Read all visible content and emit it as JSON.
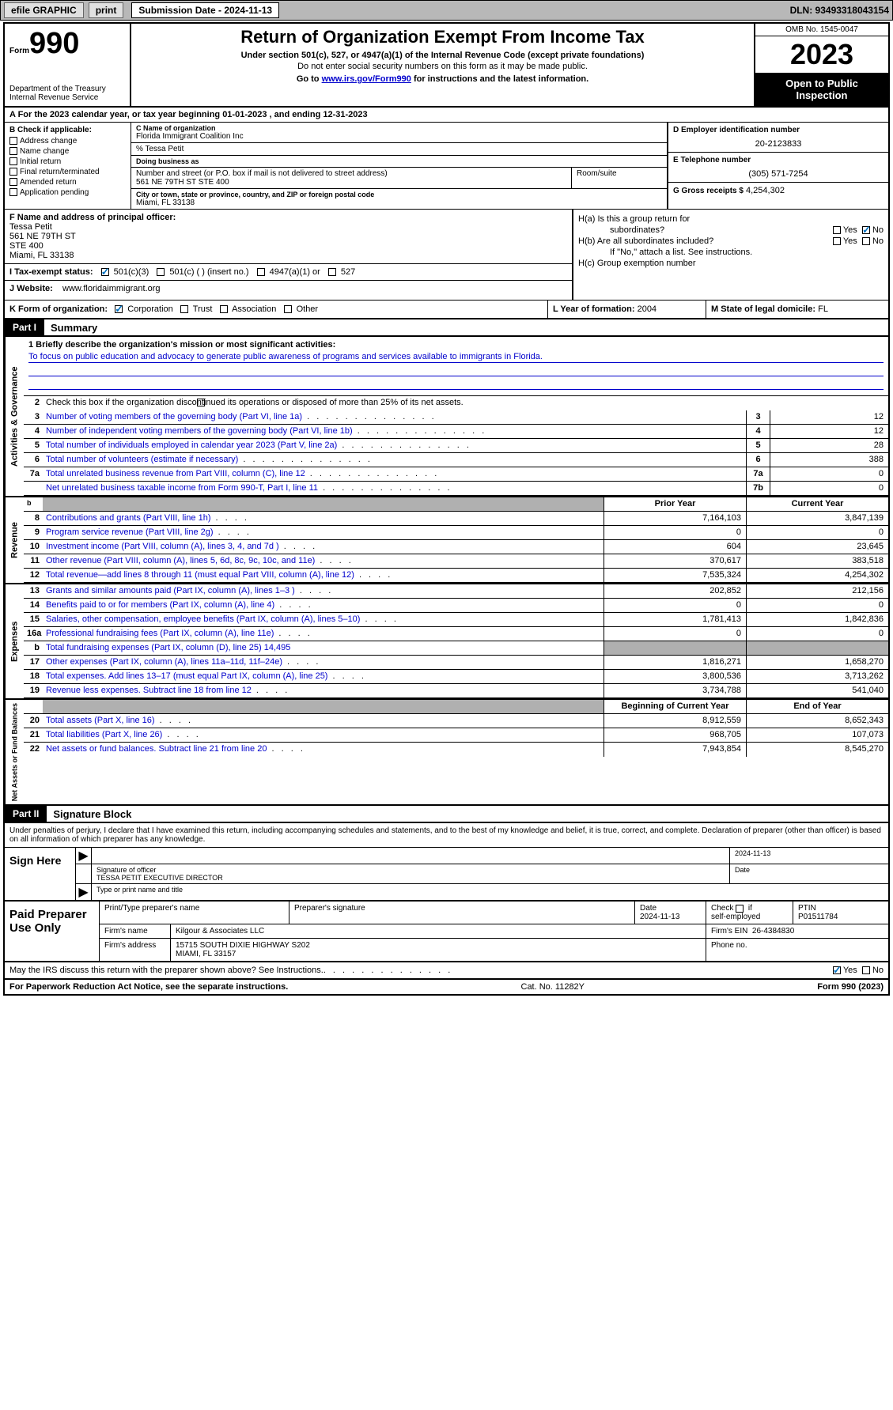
{
  "topbar": {
    "efile": "efile GRAPHIC",
    "print": "print",
    "submission": "Submission Date - 2024-11-13",
    "dln": "DLN: 93493318043154"
  },
  "header": {
    "form_word": "Form",
    "form_num": "990",
    "title": "Return of Organization Exempt From Income Tax",
    "sub1": "Under section 501(c), 527, or 4947(a)(1) of the Internal Revenue Code (except private foundations)",
    "sub2": "Do not enter social security numbers on this form as it may be made public.",
    "sub3_pre": "Go to ",
    "sub3_link": "www.irs.gov/Form990",
    "sub3_post": " for instructions and the latest information.",
    "dept1": "Department of the Treasury",
    "dept2": "Internal Revenue Service",
    "omb": "OMB No. 1545-0047",
    "year": "2023",
    "open": "Open to Public Inspection"
  },
  "rowA": "A For the 2023 calendar year, or tax year beginning 01-01-2023    , and ending 12-31-2023",
  "secB": {
    "lbl": "B Check if applicable:",
    "opts": [
      "Address change",
      "Name change",
      "Initial return",
      "Final return/terminated",
      "Amended return",
      "Application pending"
    ]
  },
  "secC": {
    "name_lbl": "C Name of organization",
    "name": "Florida Immigrant Coalition Inc",
    "care": "% Tessa Petit",
    "dba_lbl": "Doing business as",
    "dba": "",
    "addr_lbl": "Number and street (or P.O. box if mail is not delivered to street address)",
    "addr": "561 NE 79TH ST STE 400",
    "room_lbl": "Room/suite",
    "city_lbl": "City or town, state or province, country, and ZIP or foreign postal code",
    "city": "Miami, FL  33138"
  },
  "secD": {
    "lbl": "D Employer identification number",
    "val": "20-2123833"
  },
  "secE": {
    "lbl": "E Telephone number",
    "val": "(305) 571-7254"
  },
  "secG": {
    "lbl": "G Gross receipts $",
    "val": "4,254,302"
  },
  "secF": {
    "lbl": "F  Name and address of principal officer:",
    "l1": "Tessa Petit",
    "l2": "561 NE 79TH ST",
    "l3": "STE 400",
    "l4": "Miami, FL  33138"
  },
  "secH": {
    "a": "H(a)  Is this a group return for",
    "a2": "subordinates?",
    "b": "H(b)  Are all subordinates included?",
    "b2": "If \"No,\" attach a list. See instructions.",
    "c": "H(c)  Group exemption number",
    "yes": "Yes",
    "no": "No"
  },
  "secI": {
    "lbl": "I   Tax-exempt status:",
    "o1": "501(c)(3)",
    "o2": "501(c) (  ) (insert no.)",
    "o3": "4947(a)(1) or",
    "o4": "527"
  },
  "secJ": {
    "lbl": "J   Website:",
    "val": "www.floridaimmigrant.org"
  },
  "secK": {
    "lbl": "K Form of organization:",
    "o1": "Corporation",
    "o2": "Trust",
    "o3": "Association",
    "o4": "Other"
  },
  "secL": {
    "lbl": "L Year of formation:",
    "val": "2004"
  },
  "secM": {
    "lbl": "M State of legal domicile:",
    "val": "FL"
  },
  "partI": {
    "num": "Part I",
    "title": "Summary"
  },
  "mission": {
    "lbl": "1   Briefly describe the organization's mission or most significant activities:",
    "text": "To focus on public education and advocacy to generate public awareness of programs and services available to immigrants in Florida."
  },
  "line2": "Check this box          if the organization discontinued its operations or disposed of more than 25% of its net assets.",
  "tabs": {
    "gov": "Activities & Governance",
    "rev": "Revenue",
    "exp": "Expenses",
    "net": "Net Assets or Fund Balances"
  },
  "cols": {
    "prior": "Prior Year",
    "current": "Current Year",
    "begin": "Beginning of Current Year",
    "end": "End of Year"
  },
  "govLines": [
    {
      "n": "3",
      "d": "Number of voting members of the governing body (Part VI, line 1a)",
      "c": "3",
      "v": "12"
    },
    {
      "n": "4",
      "d": "Number of independent voting members of the governing body (Part VI, line 1b)",
      "c": "4",
      "v": "12"
    },
    {
      "n": "5",
      "d": "Total number of individuals employed in calendar year 2023 (Part V, line 2a)",
      "c": "5",
      "v": "28"
    },
    {
      "n": "6",
      "d": "Total number of volunteers (estimate if necessary)",
      "c": "6",
      "v": "388"
    },
    {
      "n": "7a",
      "d": "Total unrelated business revenue from Part VIII, column (C), line 12",
      "c": "7a",
      "v": "0"
    },
    {
      "n": "",
      "d": "Net unrelated business taxable income from Form 990-T, Part I, line 11",
      "c": "7b",
      "v": "0"
    }
  ],
  "revLines": [
    {
      "n": "8",
      "d": "Contributions and grants (Part VIII, line 1h)",
      "p": "7,164,103",
      "c": "3,847,139"
    },
    {
      "n": "9",
      "d": "Program service revenue (Part VIII, line 2g)",
      "p": "0",
      "c": "0"
    },
    {
      "n": "10",
      "d": "Investment income (Part VIII, column (A), lines 3, 4, and 7d )",
      "p": "604",
      "c": "23,645"
    },
    {
      "n": "11",
      "d": "Other revenue (Part VIII, column (A), lines 5, 6d, 8c, 9c, 10c, and 11e)",
      "p": "370,617",
      "c": "383,518"
    },
    {
      "n": "12",
      "d": "Total revenue—add lines 8 through 11 (must equal Part VIII, column (A), line 12)",
      "p": "7,535,324",
      "c": "4,254,302"
    }
  ],
  "expLines": [
    {
      "n": "13",
      "d": "Grants and similar amounts paid (Part IX, column (A), lines 1–3 )",
      "p": "202,852",
      "c": "212,156"
    },
    {
      "n": "14",
      "d": "Benefits paid to or for members (Part IX, column (A), line 4)",
      "p": "0",
      "c": "0"
    },
    {
      "n": "15",
      "d": "Salaries, other compensation, employee benefits (Part IX, column (A), lines 5–10)",
      "p": "1,781,413",
      "c": "1,842,836"
    },
    {
      "n": "16a",
      "d": "Professional fundraising fees (Part IX, column (A), line 11e)",
      "p": "0",
      "c": "0"
    },
    {
      "n": "b",
      "d": "Total fundraising expenses (Part IX, column (D), line 25) 14,495",
      "p": "",
      "c": "",
      "grey": true
    },
    {
      "n": "17",
      "d": "Other expenses (Part IX, column (A), lines 11a–11d, 11f–24e)",
      "p": "1,816,271",
      "c": "1,658,270"
    },
    {
      "n": "18",
      "d": "Total expenses. Add lines 13–17 (must equal Part IX, column (A), line 25)",
      "p": "3,800,536",
      "c": "3,713,262"
    },
    {
      "n": "19",
      "d": "Revenue less expenses. Subtract line 18 from line 12",
      "p": "3,734,788",
      "c": "541,040"
    }
  ],
  "netLines": [
    {
      "n": "20",
      "d": "Total assets (Part X, line 16)",
      "p": "8,912,559",
      "c": "8,652,343"
    },
    {
      "n": "21",
      "d": "Total liabilities (Part X, line 26)",
      "p": "968,705",
      "c": "107,073"
    },
    {
      "n": "22",
      "d": "Net assets or fund balances. Subtract line 21 from line 20",
      "p": "7,943,854",
      "c": "8,545,270"
    }
  ],
  "partII": {
    "num": "Part II",
    "title": "Signature Block"
  },
  "sigIntro": "Under penalties of perjury, I declare that I have examined this return, including accompanying schedules and statements, and to the best of my knowledge and belief, it is true, correct, and complete. Declaration of preparer (other than officer) is based on all information of which preparer has any knowledge.",
  "sign": {
    "here": "Sign Here",
    "sig_lbl": "Signature of officer",
    "officer": "TESSA PETIT  EXECUTIVE DIRECTOR",
    "name_lbl": "Type or print name and title",
    "date": "2024-11-13",
    "date_lbl": "Date"
  },
  "prep": {
    "title": "Paid Preparer Use Only",
    "name_lbl": "Print/Type preparer's name",
    "sig_lbl": "Preparer's signature",
    "date_lbl": "Date",
    "date": "2024-11-13",
    "check_lbl": "Check        if self-employed",
    "ptin_lbl": "PTIN",
    "ptin": "P01511784",
    "firm_lbl": "Firm's name",
    "firm": "Kilgour & Associates LLC",
    "ein_lbl": "Firm's EIN",
    "ein": "26-4384830",
    "addr_lbl": "Firm's address",
    "addr1": "15715 SOUTH DIXIE HIGHWAY S202",
    "addr2": "MIAMI, FL  33157",
    "phone_lbl": "Phone no."
  },
  "discuss": "May the IRS discuss this return with the preparer shown above? See Instructions.",
  "footer": {
    "l": "For Paperwork Reduction Act Notice, see the separate instructions.",
    "m": "Cat. No. 11282Y",
    "r": "Form 990 (2023)"
  },
  "yn": {
    "yes": "Yes",
    "no": "No"
  }
}
